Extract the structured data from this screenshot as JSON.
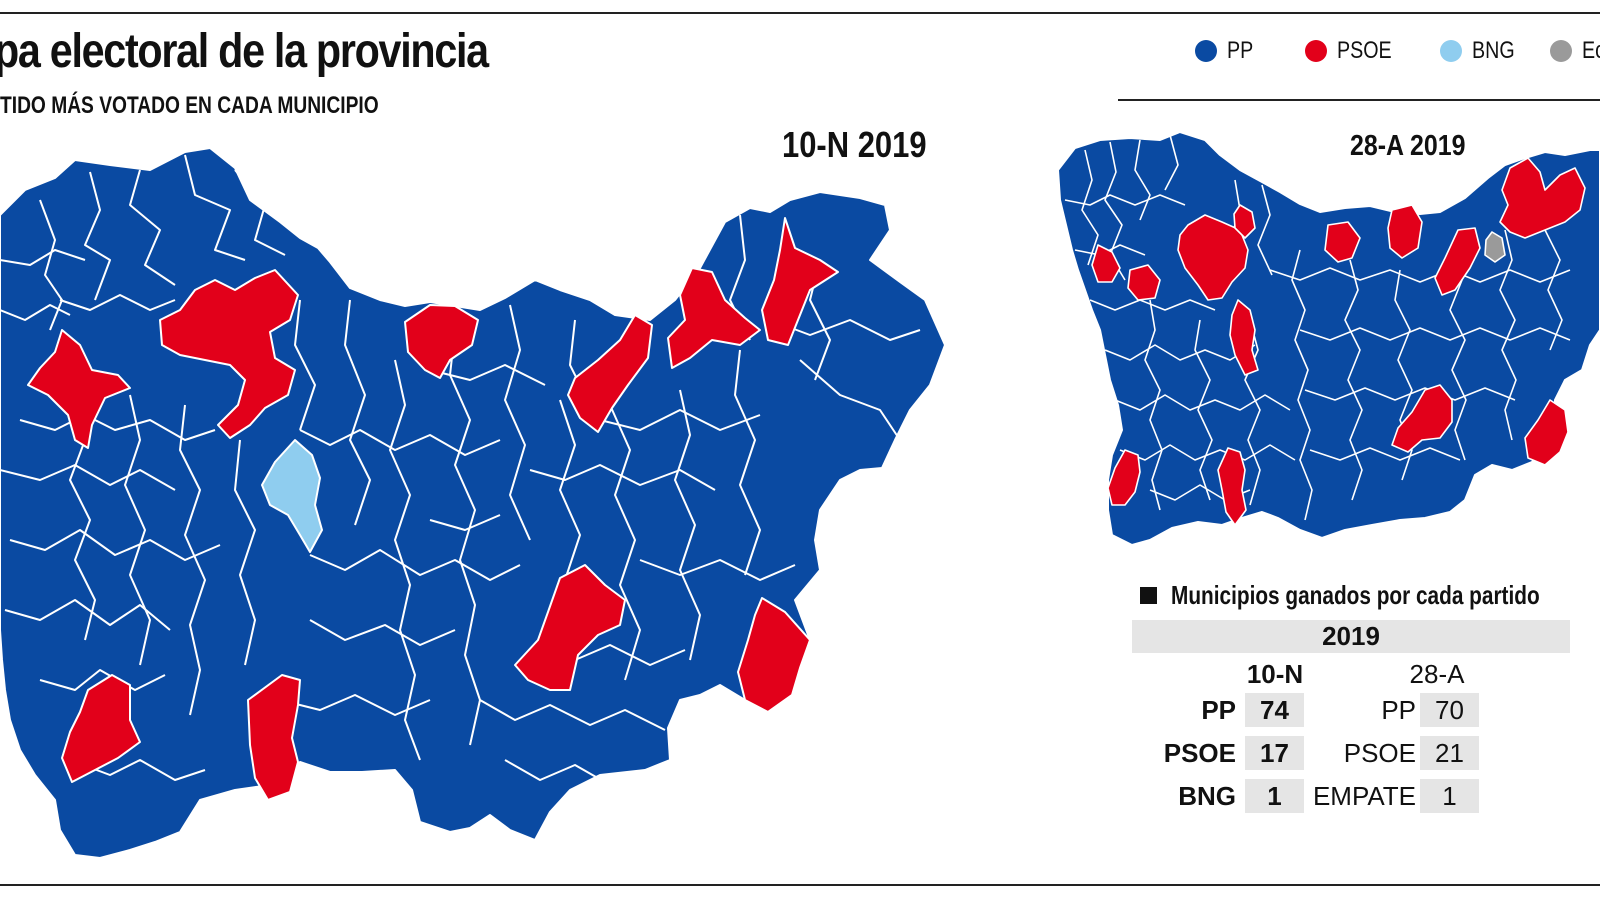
{
  "header": {
    "title": "pa electoral de la provincia",
    "subtitle": "TIDO MÁS VOTADO EN CADA MUNICIPIO"
  },
  "legend": [
    {
      "label": "PP",
      "color": "#0a4aa2"
    },
    {
      "label": "PSOE",
      "color": "#e2001a"
    },
    {
      "label": "BNG",
      "color": "#8fcdef"
    },
    {
      "label": "Ec",
      "color": "#9a9a9a"
    }
  ],
  "maps": {
    "main_title": "10-N 2019",
    "secondary_title": "28-A 2019"
  },
  "stats": {
    "heading": "Municipios ganados por cada partido",
    "year": "2019",
    "col_a": "10-N",
    "col_b": "28-A",
    "rows": [
      {
        "a_label": "PP",
        "a_value": "74",
        "b_label": "PP",
        "b_value": "70"
      },
      {
        "a_label": "PSOE",
        "a_value": "17",
        "b_label": "PSOE",
        "b_value": "21"
      },
      {
        "a_label": "BNG",
        "a_value": "1",
        "b_label": "EMPATE",
        "b_value": "1"
      }
    ]
  }
}
